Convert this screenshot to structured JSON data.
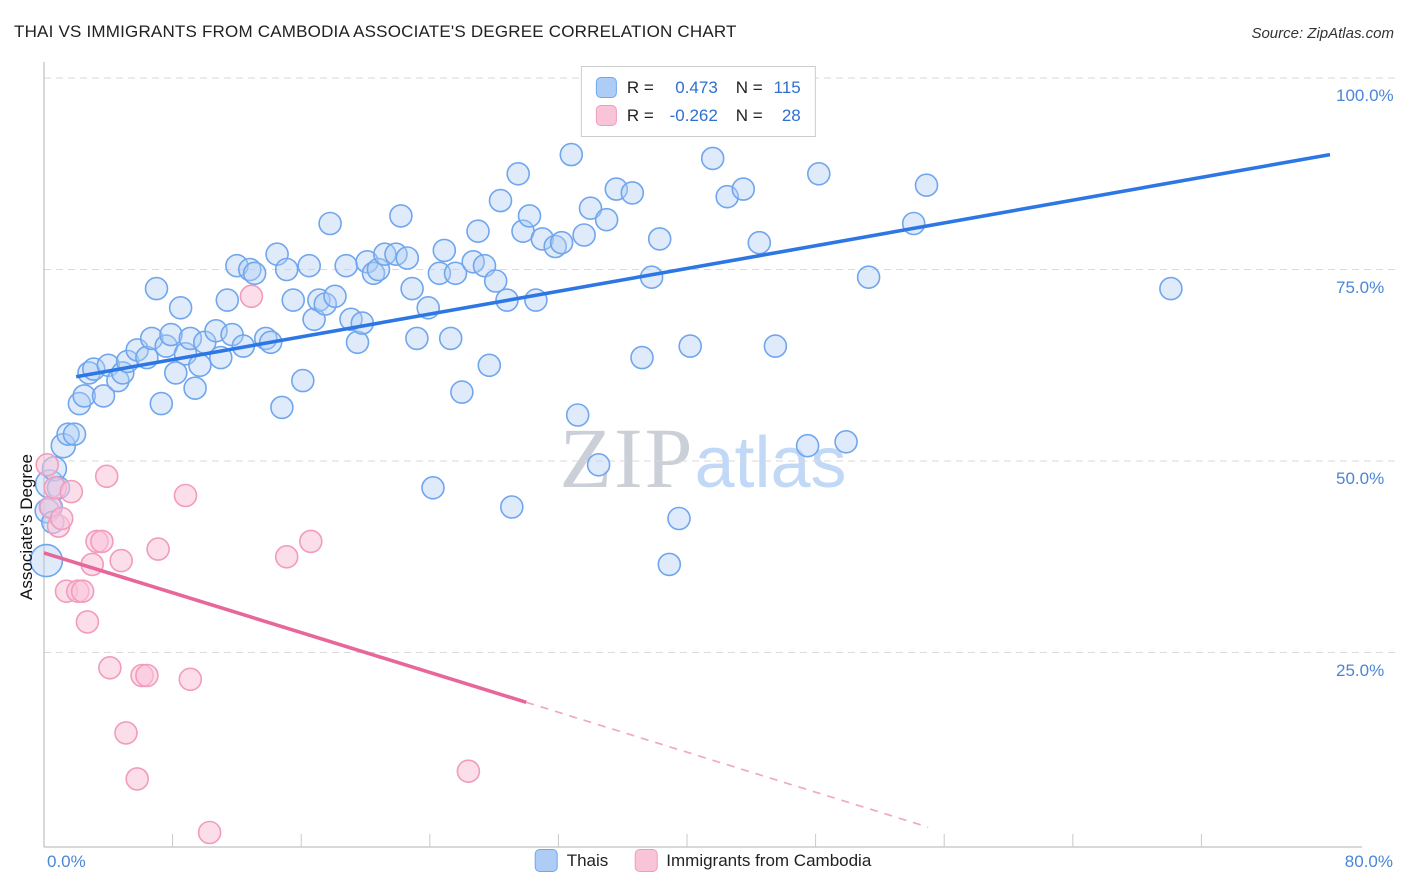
{
  "header": {
    "title": "THAI VS IMMIGRANTS FROM CAMBODIA ASSOCIATE'S DEGREE CORRELATION CHART",
    "source": "Source: ZipAtlas.com"
  },
  "watermark": {
    "zip": "ZIP",
    "atlas": "atlas"
  },
  "axes": {
    "ylabel": "Associate's Degree",
    "x_min_label": "0.0%",
    "x_max_label": "80.0%",
    "y_ticks": [
      {
        "label": "100.0%",
        "value": 100
      },
      {
        "label": "75.0%",
        "value": 75
      },
      {
        "label": "50.0%",
        "value": 50
      },
      {
        "label": "25.0%",
        "value": 25
      }
    ]
  },
  "legend_box": {
    "rows": [
      {
        "series": "Thais",
        "r_label": "R =",
        "r_value": "0.473",
        "n_label": "N =",
        "n_value": "115"
      },
      {
        "series": "Immigrants from Cambodia",
        "r_label": "R =",
        "r_value": "-0.262",
        "n_label": "N =",
        "n_value": "28"
      }
    ]
  },
  "bottom_legend": [
    {
      "label": "Thais"
    },
    {
      "label": "Immigrants from Cambodia"
    }
  ],
  "colors": {
    "blue_point_fill": "#aecdf6",
    "blue_point_stroke": "#70a6ee",
    "blue_trend": "#2d77e5",
    "pink_point_fill": "#f9c3d8",
    "pink_point_stroke": "#f19cbb",
    "pink_trend": "#e8679b",
    "axis_tick_label": "#4a86d8",
    "legend_value": "#2e6fd0"
  },
  "chart_data": {
    "type": "scatter",
    "title": "THAI VS IMMIGRANTS FROM CAMBODIA ASSOCIATE'S DEGREE CORRELATION CHART",
    "xlabel": "",
    "ylabel": "Associate's Degree",
    "x_unit": "%",
    "y_unit": "%",
    "xlim": [
      0,
      80
    ],
    "ylim": [
      0,
      100
    ],
    "grid": "horizontal-dashed",
    "legend_position": "bottom-center",
    "series": [
      {
        "name": "Thais",
        "R": 0.473,
        "N": 115,
        "trend": {
          "x1": 2,
          "y1": 61,
          "x2": 80,
          "y2": 90
        },
        "points": [
          [
            0.15,
            37,
            16
          ],
          [
            0.2,
            43.5,
            12
          ],
          [
            0.35,
            47,
            14
          ],
          [
            0.45,
            44,
            11
          ],
          [
            0.55,
            42,
            11
          ],
          [
            0.65,
            49,
            12
          ],
          [
            0.9,
            46.5,
            11
          ],
          [
            1.2,
            52,
            12
          ],
          [
            1.5,
            53.5
          ],
          [
            1.9,
            53.5
          ],
          [
            2.2,
            57.5
          ],
          [
            2.5,
            58.5
          ],
          [
            2.8,
            61.5
          ],
          [
            3.1,
            62
          ],
          [
            3.7,
            58.5
          ],
          [
            4.0,
            62.5
          ],
          [
            4.6,
            60.5
          ],
          [
            4.9,
            61.5
          ],
          [
            5.2,
            63
          ],
          [
            5.8,
            64.5
          ],
          [
            6.4,
            63.5
          ],
          [
            6.7,
            66
          ],
          [
            7.0,
            72.5
          ],
          [
            7.3,
            57.5
          ],
          [
            7.6,
            65
          ],
          [
            7.9,
            66.5
          ],
          [
            8.2,
            61.5
          ],
          [
            8.5,
            70
          ],
          [
            8.8,
            64
          ],
          [
            9.1,
            66
          ],
          [
            9.4,
            59.5
          ],
          [
            9.7,
            62.5
          ],
          [
            10.0,
            65.5
          ],
          [
            10.7,
            67
          ],
          [
            11.0,
            63.5
          ],
          [
            11.4,
            71
          ],
          [
            11.7,
            66.5
          ],
          [
            12.0,
            75.5
          ],
          [
            12.4,
            65
          ],
          [
            12.8,
            75
          ],
          [
            13.1,
            74.5
          ],
          [
            13.8,
            66
          ],
          [
            14.1,
            65.5
          ],
          [
            14.5,
            77
          ],
          [
            14.8,
            57
          ],
          [
            15.1,
            75
          ],
          [
            15.5,
            71
          ],
          [
            16.1,
            60.5
          ],
          [
            16.5,
            75.5
          ],
          [
            16.8,
            68.5
          ],
          [
            17.1,
            71
          ],
          [
            17.5,
            70.5
          ],
          [
            17.8,
            81
          ],
          [
            18.1,
            71.5
          ],
          [
            18.8,
            75.5
          ],
          [
            19.1,
            68.5
          ],
          [
            19.5,
            65.5
          ],
          [
            19.8,
            68
          ],
          [
            20.1,
            76
          ],
          [
            20.5,
            74.5
          ],
          [
            20.8,
            75
          ],
          [
            21.2,
            77
          ],
          [
            21.9,
            77
          ],
          [
            22.2,
            82
          ],
          [
            22.6,
            76.5
          ],
          [
            22.9,
            72.5
          ],
          [
            23.2,
            66
          ],
          [
            23.9,
            70
          ],
          [
            24.2,
            46.5
          ],
          [
            24.6,
            74.5
          ],
          [
            24.9,
            77.5
          ],
          [
            25.3,
            66
          ],
          [
            25.6,
            74.5
          ],
          [
            26.0,
            59
          ],
          [
            26.7,
            76
          ],
          [
            27.0,
            80
          ],
          [
            27.4,
            75.5
          ],
          [
            27.7,
            62.5
          ],
          [
            28.1,
            73.5
          ],
          [
            28.4,
            84
          ],
          [
            28.8,
            71
          ],
          [
            29.1,
            44
          ],
          [
            29.5,
            87.5
          ],
          [
            29.8,
            80
          ],
          [
            30.2,
            82
          ],
          [
            30.6,
            71
          ],
          [
            31.0,
            79
          ],
          [
            31.8,
            78
          ],
          [
            32.2,
            78.5
          ],
          [
            32.8,
            90
          ],
          [
            33.2,
            56
          ],
          [
            33.6,
            79.5
          ],
          [
            34.0,
            83
          ],
          [
            34.5,
            49.5
          ],
          [
            35.0,
            81.5
          ],
          [
            35.6,
            85.5
          ],
          [
            36.6,
            85
          ],
          [
            37.2,
            63.5
          ],
          [
            37.8,
            74
          ],
          [
            38.3,
            79
          ],
          [
            38.9,
            36.5
          ],
          [
            39.5,
            42.5
          ],
          [
            40.2,
            65
          ],
          [
            41.6,
            89.5
          ],
          [
            42.5,
            84.5
          ],
          [
            43.5,
            85.5
          ],
          [
            44.5,
            78.5
          ],
          [
            45.5,
            65
          ],
          [
            47.5,
            52
          ],
          [
            48.2,
            87.5
          ],
          [
            49.9,
            52.5
          ],
          [
            51.3,
            74
          ],
          [
            54.1,
            81
          ],
          [
            54.9,
            86
          ],
          [
            70.1,
            72.5
          ]
        ]
      },
      {
        "name": "Immigrants from Cambodia",
        "R": -0.262,
        "N": 28,
        "trend": {
          "x1": 0,
          "y1": 38,
          "x2": 30,
          "y2": 18.5
        },
        "trend_ext": {
          "x1": 30,
          "y1": 18.5,
          "x2": 55,
          "y2": 2.2
        },
        "points": [
          [
            0.2,
            49.5
          ],
          [
            0.4,
            44
          ],
          [
            0.7,
            46.5
          ],
          [
            0.9,
            41.5
          ],
          [
            1.1,
            42.5
          ],
          [
            1.4,
            33
          ],
          [
            1.7,
            46
          ],
          [
            2.1,
            33
          ],
          [
            2.4,
            33
          ],
          [
            2.7,
            29
          ],
          [
            3.0,
            36.5
          ],
          [
            3.3,
            39.5
          ],
          [
            3.6,
            39.5
          ],
          [
            3.9,
            48
          ],
          [
            4.1,
            23
          ],
          [
            4.8,
            37
          ],
          [
            5.1,
            14.5
          ],
          [
            5.8,
            8.5
          ],
          [
            6.1,
            22
          ],
          [
            6.4,
            22
          ],
          [
            7.1,
            38.5
          ],
          [
            8.8,
            45.5
          ],
          [
            9.1,
            21.5
          ],
          [
            10.3,
            1.5
          ],
          [
            12.9,
            71.5
          ],
          [
            15.1,
            37.5
          ],
          [
            16.6,
            39.5
          ],
          [
            26.4,
            9.5
          ]
        ]
      }
    ]
  }
}
